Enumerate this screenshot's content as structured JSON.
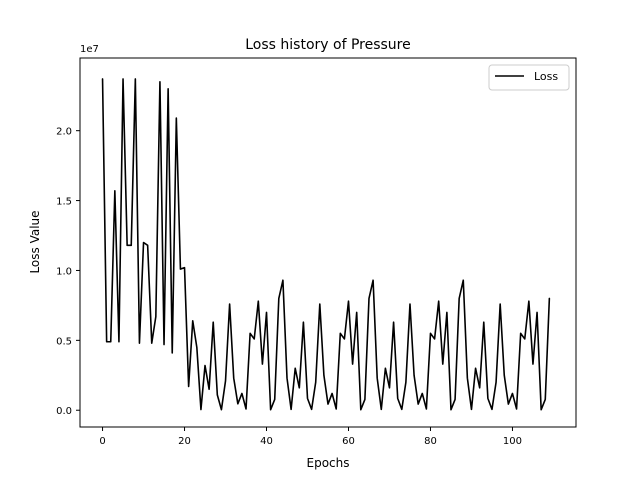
{
  "chart_data": {
    "type": "line",
    "title": "Loss history of Pressure",
    "xlabel": "Epochs",
    "ylabel": "Loss Value",
    "y_scale_label": "1e7",
    "xlim": [
      -5.5,
      115.5
    ],
    "ylim": [
      -1200000,
      25200000
    ],
    "grid": false,
    "legend_position": "top-right",
    "x_ticks": [
      0,
      20,
      40,
      60,
      80,
      100
    ],
    "x_tick_labels": [
      "0",
      "20",
      "40",
      "60",
      "80",
      "100"
    ],
    "y_ticks": [
      0,
      5000000,
      10000000,
      15000000,
      20000000
    ],
    "y_tick_labels": [
      "0.0",
      "0.5",
      "1.0",
      "1.5",
      "2.0"
    ],
    "series": [
      {
        "name": "Loss",
        "color": "#000000",
        "x": [
          0,
          1,
          2,
          3,
          4,
          5,
          6,
          7,
          8,
          9,
          10,
          11,
          12,
          13,
          14,
          15,
          16,
          17,
          18,
          19,
          20,
          21,
          22,
          23,
          24,
          25,
          26,
          27,
          28,
          29,
          30,
          31,
          32,
          33,
          34,
          35,
          36,
          37,
          38,
          39,
          40,
          41,
          42,
          43,
          44,
          45,
          46,
          47,
          48,
          49,
          50,
          51,
          52,
          53,
          54,
          55,
          56,
          57,
          58,
          59,
          60,
          61,
          62,
          63,
          64,
          65,
          66,
          67,
          68,
          69,
          70,
          71,
          72,
          73,
          74,
          75,
          76,
          77,
          78,
          79,
          80,
          81,
          82,
          83,
          84,
          85,
          86,
          87,
          88,
          89,
          90,
          91,
          92,
          93,
          94,
          95,
          96,
          97,
          98,
          99,
          100,
          101,
          102,
          103,
          104,
          105,
          106,
          107,
          108,
          109
        ],
        "values": [
          23700000,
          4900000,
          4900000,
          15700000,
          4900000,
          23700000,
          11800000,
          11800000,
          23700000,
          4800000,
          12000000,
          11800000,
          4800000,
          6700000,
          23500000,
          4700000,
          23000000,
          4100000,
          20900000,
          10100000,
          10200000,
          1700000,
          6400000,
          4500000,
          50000,
          3200000,
          1500000,
          6300000,
          1100000,
          40000,
          2100000,
          7600000,
          2300000,
          460000,
          1200000,
          90000,
          5500000,
          5100000,
          7800000,
          3300000,
          7000000,
          40000,
          770000,
          8000000,
          9300000,
          2300000,
          60000,
          3000000,
          1600000,
          6300000,
          850000,
          60000,
          2000000,
          7600000,
          2500000,
          440000,
          1200000,
          90000,
          5500000,
          5100000,
          7800000,
          3300000,
          7000000,
          40000,
          770000,
          8000000,
          9300000,
          2300000,
          60000,
          3000000,
          1600000,
          6300000,
          850000,
          60000,
          2000000,
          7600000,
          2500000,
          440000,
          1200000,
          90000,
          5500000,
          5100000,
          7800000,
          3300000,
          7000000,
          40000,
          770000,
          8000000,
          9300000,
          2300000,
          60000,
          3000000,
          1600000,
          6300000,
          850000,
          60000,
          2000000,
          7600000,
          2500000,
          440000,
          1200000,
          90000,
          5500000,
          5100000,
          7800000,
          3300000,
          7000000,
          40000,
          770000,
          8000000
        ]
      }
    ]
  }
}
